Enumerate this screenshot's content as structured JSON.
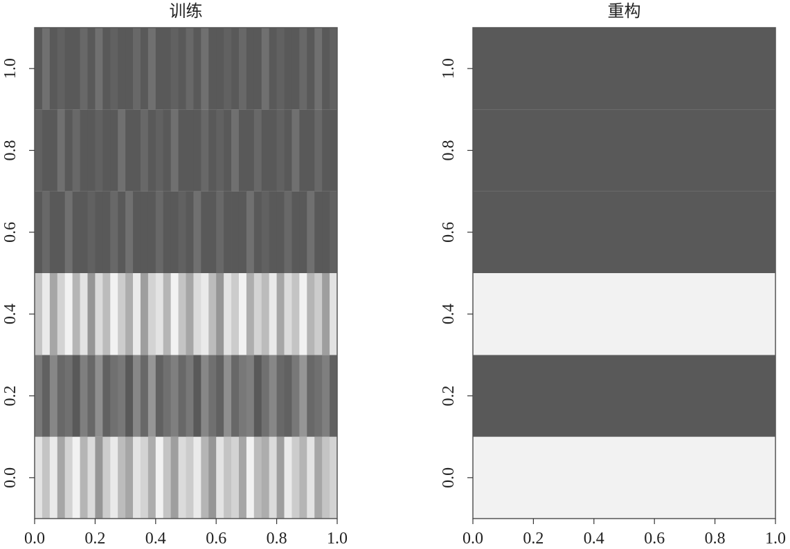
{
  "chart_data": [
    {
      "type": "heatmap",
      "title": "训练",
      "x": [
        0.0125,
        0.0375,
        0.0625,
        0.0875,
        0.1125,
        0.1375,
        0.1625,
        0.1875,
        0.2125,
        0.2375,
        0.2625,
        0.2875,
        0.3125,
        0.3375,
        0.3625,
        0.3875,
        0.4125,
        0.4375,
        0.4625,
        0.4875,
        0.5125,
        0.5375,
        0.5625,
        0.5875,
        0.6125,
        0.6375,
        0.6625,
        0.6875,
        0.7125,
        0.7375,
        0.7625,
        0.7875,
        0.8125,
        0.8375,
        0.8625,
        0.8875,
        0.9125,
        0.9375,
        0.9625,
        0.9875
      ],
      "y": [
        0,
        0.2,
        0.4,
        0.6,
        0.8,
        1
      ],
      "z": [
        [
          0.1,
          0.3,
          0.05,
          0.5,
          0.2,
          0,
          0.4,
          0.15,
          0.6,
          0.25,
          0.05,
          0.35,
          0.5,
          0.1,
          0.2,
          0.45,
          0,
          0.3,
          0.55,
          0.15,
          0.25,
          0.05,
          0.4,
          0.6,
          0.1,
          0.3,
          0.2,
          0.5,
          0,
          0.35,
          0.45,
          0.15,
          0.55,
          0.05,
          0.25,
          0.4,
          0.1,
          0.5,
          0.3,
          0.2
        ],
        [
          0.8,
          0.95,
          0.7,
          0.9,
          0.85,
          1,
          0.75,
          0.9,
          0.65,
          0.95,
          0.85,
          0.8,
          1,
          0.7,
          0.9,
          0.6,
          0.95,
          0.85,
          0.75,
          0.9,
          0.8,
          1,
          0.7,
          0.85,
          0.95,
          0.65,
          0.9,
          0.8,
          0.75,
          1,
          0.85,
          0.7,
          0.9,
          0.95,
          0.8,
          0.6,
          0.9,
          0.85,
          0.75,
          0.95
        ],
        [
          0.3,
          0.05,
          0.5,
          0.2,
          0,
          0.4,
          0.1,
          0.6,
          0.15,
          0.35,
          0,
          0.25,
          0.45,
          0.05,
          0.55,
          0.2,
          0.1,
          0.4,
          0,
          0.3,
          0.5,
          0.15,
          0.05,
          0.35,
          0.6,
          0.1,
          0.25,
          0,
          0.45,
          0.2,
          0.35,
          0.05,
          0.5,
          0.15,
          0.3,
          0,
          0.4,
          0.25,
          0.55,
          0.1
        ],
        [
          1,
          0.9,
          1,
          1,
          0.85,
          1,
          1,
          0.95,
          1,
          1,
          0.9,
          1,
          0.85,
          1,
          1,
          1,
          0.9,
          1,
          1,
          0.95,
          1,
          0.85,
          1,
          1,
          0.9,
          1,
          1,
          1,
          0.85,
          1,
          0.95,
          1,
          1,
          0.9,
          1,
          1,
          0.85,
          1,
          1,
          0.95
        ],
        [
          0.95,
          1,
          1,
          0.85,
          1,
          0.9,
          1,
          1,
          0.95,
          1,
          1,
          0.85,
          1,
          1,
          0.9,
          1,
          0.95,
          1,
          0.85,
          1,
          1,
          1,
          0.9,
          1,
          0.95,
          1,
          0.85,
          1,
          1,
          0.9,
          1,
          1,
          0.95,
          1,
          0.85,
          1,
          1,
          0.9,
          1,
          1
        ],
        [
          1,
          0.85,
          1,
          0.95,
          1,
          1,
          0.9,
          1,
          0.85,
          1,
          0.95,
          1,
          1,
          0.9,
          1,
          0.85,
          1,
          1,
          0.95,
          1,
          0.9,
          1,
          0.85,
          1,
          1,
          0.95,
          1,
          0.9,
          1,
          1,
          0.85,
          1,
          0.95,
          1,
          1,
          0.9,
          1,
          0.85,
          1,
          0.95
        ]
      ],
      "color_low": "#f2f2f2",
      "color_high": "#595959",
      "xlim": [
        0,
        1
      ],
      "ylim": [
        -0.1,
        1.1
      ],
      "xticks": [
        {
          "value": 0,
          "label": "0.0"
        },
        0.2,
        0.4,
        0.6,
        0.8,
        {
          "value": 1,
          "label": "1.0"
        }
      ],
      "yticks": [
        {
          "value": 0,
          "label": "0.0"
        },
        0.2,
        0.4,
        0.6,
        0.8,
        {
          "value": 1,
          "label": "1.0"
        }
      ]
    },
    {
      "type": "heatmap",
      "title": "重构",
      "x": [
        0.5
      ],
      "y": [
        0,
        0.2,
        0.4,
        0.6,
        0.8,
        1
      ],
      "z": [
        [
          0
        ],
        [
          1
        ],
        [
          0
        ],
        [
          1
        ],
        [
          1
        ],
        [
          1
        ]
      ],
      "color_low": "#f2f2f2",
      "color_high": "#595959",
      "xlim": [
        0,
        1
      ],
      "ylim": [
        -0.1,
        1.1
      ],
      "xticks": [
        {
          "value": 0,
          "label": "0.0"
        },
        0.2,
        0.4,
        0.6,
        0.8,
        {
          "value": 1,
          "label": "1.0"
        }
      ],
      "yticks": [
        {
          "value": 0,
          "label": "0.0"
        },
        0.2,
        0.4,
        0.6,
        0.8,
        {
          "value": 1,
          "label": "1.0"
        }
      ]
    }
  ]
}
